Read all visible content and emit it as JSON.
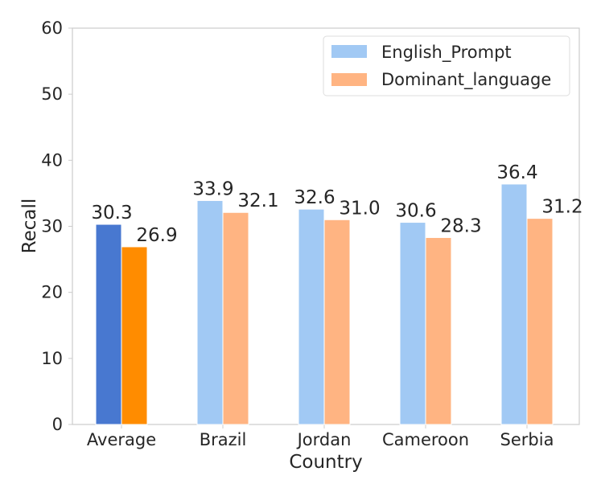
{
  "chart_data": {
    "type": "bar",
    "xlabel": "Country",
    "ylabel": "Recall",
    "ylim": [
      0,
      60
    ],
    "yticks": [
      0,
      10,
      20,
      30,
      40,
      50,
      60
    ],
    "categories": [
      "Average",
      "Brazil",
      "Jordan",
      "Cameroon",
      "Serbia"
    ],
    "series": [
      {
        "name": "English_Prompt",
        "values": [
          30.3,
          33.9,
          32.6,
          30.6,
          36.4
        ],
        "value_labels": [
          "30.3",
          "33.9",
          "32.6",
          "30.6",
          "36.4"
        ],
        "color": "#a1c9f4",
        "highlight_color": "#4878d0"
      },
      {
        "name": "Dominant_language",
        "values": [
          26.9,
          32.1,
          31.0,
          28.3,
          31.2
        ],
        "value_labels": [
          "26.9",
          "32.1",
          "31.0",
          "28.3",
          "31.2"
        ],
        "color": "#ffb482",
        "highlight_color": "#ff8c00"
      }
    ],
    "highlighted_category": "Average",
    "grid": false,
    "legend_position": "top-right"
  }
}
